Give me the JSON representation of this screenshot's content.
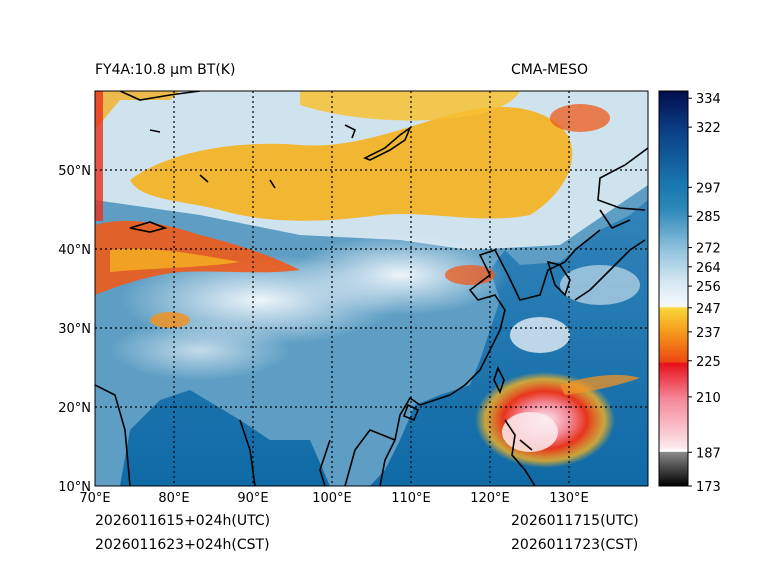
{
  "header": {
    "left_title": "FY4A:10.8 µm BT(K)",
    "right_title": "CMA-MESO"
  },
  "footer": {
    "init_utc": "2026011615+024h(UTC)",
    "init_cst": "2026011623+024h(CST)",
    "valid_utc": "2026011715(UTC)",
    "valid_cst": "2026011723(CST)"
  },
  "map": {
    "lon_labels": [
      "70°E",
      "80°E",
      "90°E",
      "100°E",
      "110°E",
      "120°E",
      "130°E"
    ],
    "lat_labels": [
      "10°N",
      "20°N",
      "30°N",
      "40°N",
      "50°N"
    ],
    "lon_range": [
      70,
      140
    ],
    "lat_range": [
      10,
      60
    ]
  },
  "colorbar": {
    "range": [
      173,
      337
    ],
    "ticks": [
      "173",
      "187",
      "210",
      "225",
      "237",
      "247",
      "256",
      "264",
      "272",
      "285",
      "297",
      "322",
      "334"
    ],
    "tick_values": [
      173,
      187,
      210,
      225,
      237,
      247,
      256,
      264,
      272,
      285,
      297,
      322,
      334
    ]
  },
  "colors": {
    "ocean": "#1a78b0",
    "land": "#6aa6c8",
    "cold_cloud": "#f5b322",
    "very_cold": "#e8311d",
    "coastline": "#000000"
  }
}
